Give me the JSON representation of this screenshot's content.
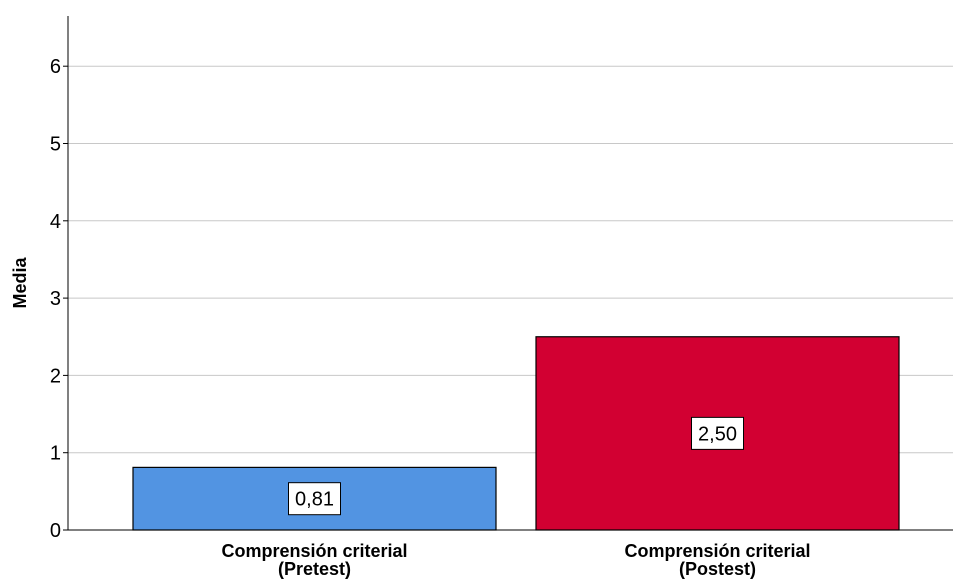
{
  "chart_data": {
    "type": "bar",
    "title": "",
    "xlabel": "",
    "ylabel": "Media",
    "ylim": [
      0,
      6.6
    ],
    "yticks": [
      "0",
      "1",
      "2",
      "3",
      "4",
      "5",
      "6"
    ],
    "grid": true,
    "categories": [
      {
        "line1": "Comprensión criterial",
        "line2": "(Pretest)"
      },
      {
        "line1": "Comprensión criterial",
        "line2": "(Postest)"
      }
    ],
    "values": [
      0.81,
      2.5
    ],
    "value_labels": [
      "0,81",
      "2,50"
    ],
    "colors": [
      "#5294e2",
      "#d20032"
    ]
  }
}
